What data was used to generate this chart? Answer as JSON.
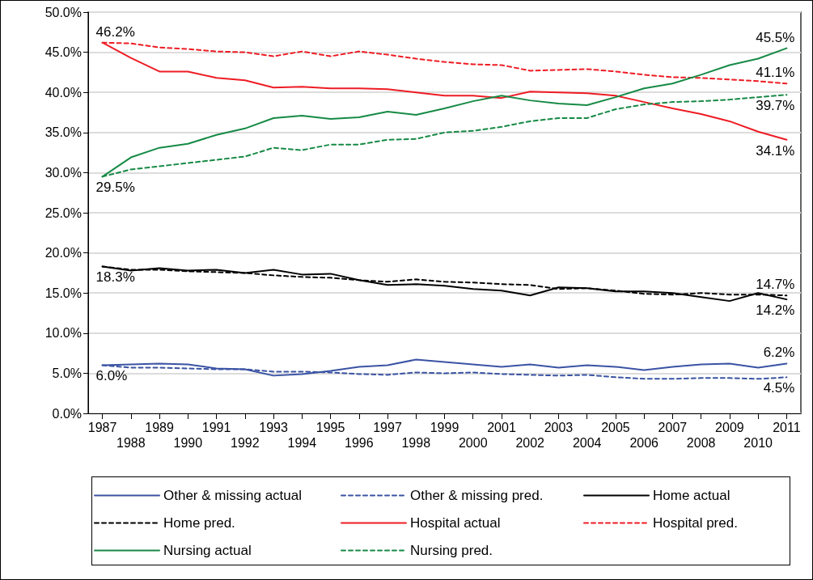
{
  "chart_data": {
    "type": "line",
    "categories": [
      "1987",
      "1988",
      "1989",
      "1990",
      "1991",
      "1992",
      "1993",
      "1994",
      "1995",
      "1996",
      "1997",
      "1998",
      "1999",
      "2000",
      "2001",
      "2002",
      "2003",
      "2004",
      "2005",
      "2006",
      "2007",
      "2008",
      "2009",
      "2010",
      "2011"
    ],
    "series": [
      {
        "name": "Other & missing actual",
        "color": "#3a53a4",
        "line_style": "solid",
        "values": [
          6.0,
          6.1,
          6.2,
          6.1,
          5.6,
          5.5,
          4.7,
          4.9,
          5.3,
          5.8,
          6.0,
          6.7,
          6.4,
          6.1,
          5.8,
          6.1,
          5.7,
          6.0,
          5.8,
          5.4,
          5.8,
          6.1,
          6.2,
          5.7,
          6.2
        ]
      },
      {
        "name": "Other & missing pred.",
        "color": "#3a53a4",
        "line_style": "dashed",
        "values": [
          6.0,
          5.7,
          5.7,
          5.6,
          5.5,
          5.5,
          5.2,
          5.2,
          5.1,
          4.9,
          4.8,
          5.1,
          5.0,
          5.1,
          4.9,
          4.8,
          4.7,
          4.8,
          4.5,
          4.3,
          4.3,
          4.4,
          4.4,
          4.3,
          4.5
        ]
      },
      {
        "name": "Home actual",
        "color": "#000000",
        "line_style": "solid",
        "values": [
          18.3,
          17.8,
          18.1,
          17.8,
          17.9,
          17.5,
          17.9,
          17.3,
          17.4,
          16.6,
          16.0,
          16.1,
          15.9,
          15.5,
          15.3,
          14.7,
          15.7,
          15.6,
          15.2,
          15.2,
          15.0,
          14.5,
          14.0,
          15.0,
          14.2
        ]
      },
      {
        "name": "Home pred.",
        "color": "#000000",
        "line_style": "dashed",
        "values": [
          18.3,
          17.9,
          17.9,
          17.7,
          17.6,
          17.5,
          17.2,
          17.0,
          16.9,
          16.6,
          16.4,
          16.7,
          16.4,
          16.3,
          16.1,
          16.0,
          15.5,
          15.6,
          15.3,
          14.9,
          14.8,
          15.0,
          14.8,
          14.8,
          14.7
        ]
      },
      {
        "name": "Hospital actual",
        "color": "#ee1c24",
        "line_style": "solid",
        "values": [
          46.2,
          44.3,
          42.6,
          42.6,
          41.8,
          41.5,
          40.6,
          40.7,
          40.5,
          40.5,
          40.4,
          40.0,
          39.6,
          39.6,
          39.3,
          40.1,
          40.0,
          39.9,
          39.6,
          38.8,
          38.0,
          37.3,
          36.4,
          35.1,
          34.1
        ]
      },
      {
        "name": "Hospital pred.",
        "color": "#ee1c24",
        "line_style": "dashed",
        "values": [
          46.2,
          46.1,
          45.6,
          45.4,
          45.1,
          45.0,
          44.5,
          45.1,
          44.5,
          45.1,
          44.7,
          44.2,
          43.8,
          43.5,
          43.4,
          42.7,
          42.8,
          42.9,
          42.6,
          42.2,
          41.9,
          41.8,
          41.6,
          41.4,
          41.1
        ]
      },
      {
        "name": "Nursing actual",
        "color": "#168a45",
        "line_style": "solid",
        "values": [
          29.5,
          31.9,
          33.1,
          33.6,
          34.7,
          35.5,
          36.8,
          37.1,
          36.7,
          36.9,
          37.6,
          37.2,
          38.0,
          38.9,
          39.6,
          39.0,
          38.6,
          38.4,
          39.4,
          40.5,
          41.1,
          42.2,
          43.4,
          44.2,
          45.5
        ]
      },
      {
        "name": "Nursing pred.",
        "color": "#168a45",
        "line_style": "dashed",
        "values": [
          29.5,
          30.4,
          30.8,
          31.2,
          31.6,
          32.0,
          33.1,
          32.8,
          33.5,
          33.5,
          34.1,
          34.2,
          35.0,
          35.2,
          35.7,
          36.4,
          36.8,
          36.8,
          37.9,
          38.5,
          38.8,
          38.9,
          39.1,
          39.4,
          39.7
        ]
      }
    ],
    "ylim": [
      0,
      50
    ],
    "yticks": [
      {
        "value": 0,
        "label": "0.0%"
      },
      {
        "value": 5,
        "label": "5.0%"
      },
      {
        "value": 10,
        "label": "10.0%"
      },
      {
        "value": 15,
        "label": "15.0%"
      },
      {
        "value": 20,
        "label": "20.0%"
      },
      {
        "value": 25,
        "label": "25.0%"
      },
      {
        "value": 30,
        "label": "30.0%"
      },
      {
        "value": 35,
        "label": "35.0%"
      },
      {
        "value": 40,
        "label": "40.0%"
      },
      {
        "value": 45,
        "label": "45.0%"
      },
      {
        "value": 50,
        "label": "50.0%"
      }
    ],
    "grid": "y",
    "legend": "bottom",
    "marker": "none",
    "annotations": [
      {
        "text": "46.2%",
        "x": "1987",
        "y": 46.2
      },
      {
        "text": "29.5%",
        "x": "1987",
        "y": 29.5
      },
      {
        "text": "18.3%",
        "x": "1987",
        "y": 18.3
      },
      {
        "text": "6.0%",
        "x": "1987",
        "y": 6.0
      },
      {
        "text": "45.5%",
        "x": "2011",
        "y": 45.5
      },
      {
        "text": "41.1%",
        "x": "2011",
        "y": 41.1
      },
      {
        "text": "39.7%",
        "x": "2011",
        "y": 39.7
      },
      {
        "text": "34.1%",
        "x": "2011",
        "y": 34.1
      },
      {
        "text": "14.7%",
        "x": "2011",
        "y": 14.7
      },
      {
        "text": "14.2%",
        "x": "2011",
        "y": 14.2
      },
      {
        "text": "6.2%",
        "x": "2011",
        "y": 6.2
      },
      {
        "text": "4.5%",
        "x": "2011",
        "y": 4.5
      }
    ]
  }
}
